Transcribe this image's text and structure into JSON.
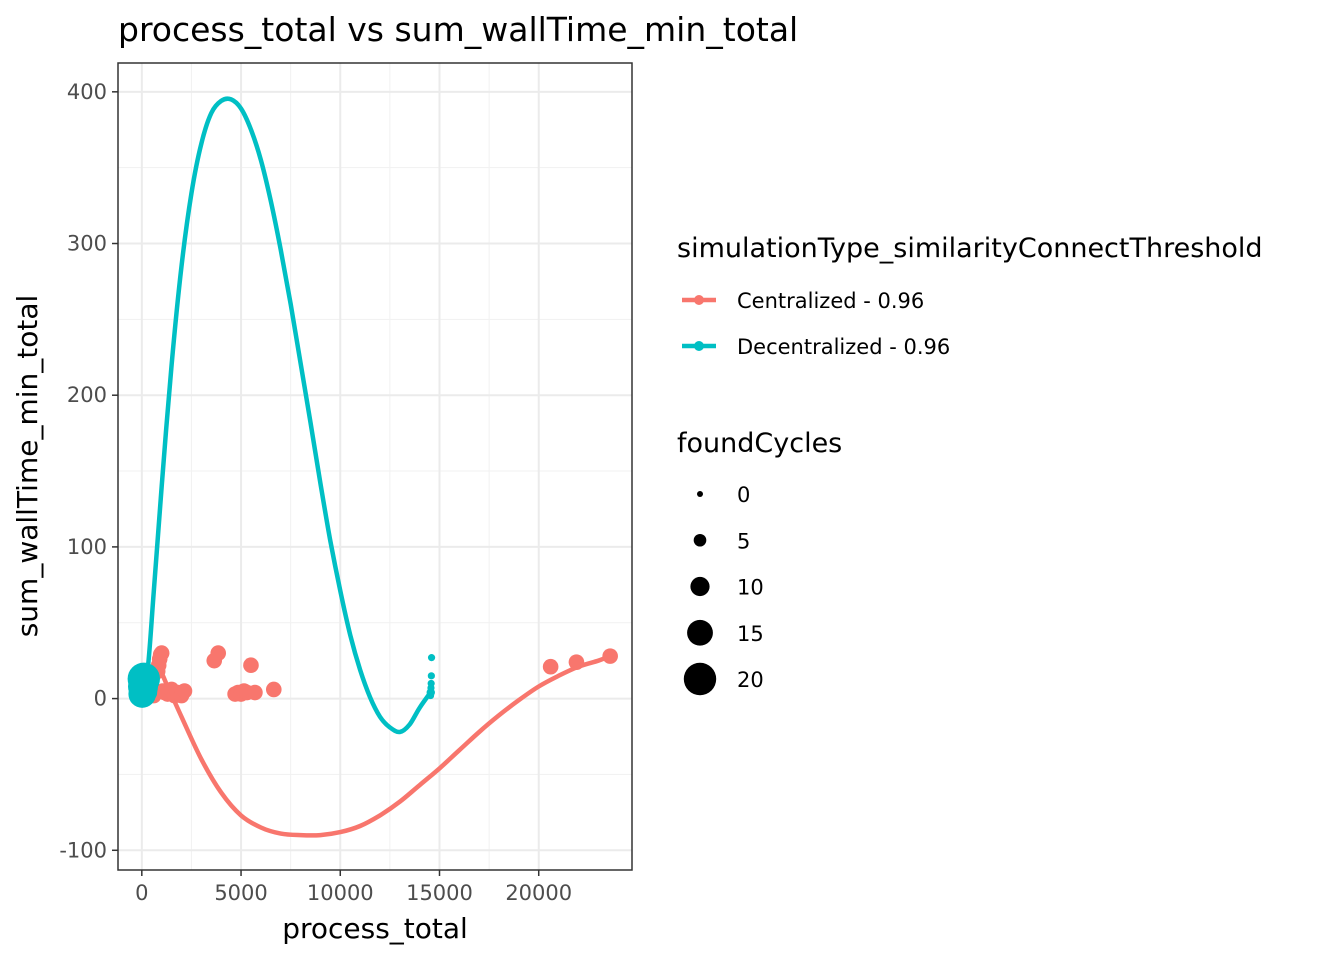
{
  "chart_data": {
    "type": "scatter",
    "title": "process_total  vs  sum_wallTime_min_total",
    "xlabel": "process_total",
    "ylabel": "sum_wallTime_min_total",
    "xlim": [
      -1200,
      24700
    ],
    "ylim": [
      -113,
      419
    ],
    "x_ticks": [
      0,
      5000,
      10000,
      15000,
      20000
    ],
    "x_tick_labels": [
      "0",
      "5000",
      "10000",
      "15000",
      "20000"
    ],
    "y_ticks": [
      -100,
      0,
      100,
      200,
      300,
      400
    ],
    "y_tick_labels": [
      "-100",
      "0",
      "100",
      "200",
      "300",
      "400"
    ],
    "grid": true,
    "legend_placement": "right",
    "color_legend": {
      "title": "simulationType_similarityConnectThreshold",
      "entries": [
        {
          "label": "Centralized - 0.96",
          "color": "#F8766D"
        },
        {
          "label": "Decentralized - 0.96",
          "color": "#00BFC4"
        }
      ]
    },
    "size_legend": {
      "title": "foundCycles",
      "entries": [
        {
          "label": "0",
          "value": 0
        },
        {
          "label": "5",
          "value": 5
        },
        {
          "label": "10",
          "value": 10
        },
        {
          "label": "15",
          "value": 15
        },
        {
          "label": "20",
          "value": 20
        }
      ]
    },
    "series": [
      {
        "name": "Centralized - 0.96",
        "color": "#F8766D",
        "points": [
          {
            "x": 50,
            "y": 2,
            "size": 8
          },
          {
            "x": 120,
            "y": 6,
            "size": 10
          },
          {
            "x": 200,
            "y": 3,
            "size": 8
          },
          {
            "x": 300,
            "y": 8,
            "size": 8
          },
          {
            "x": 400,
            "y": 4,
            "size": 8
          },
          {
            "x": 500,
            "y": 12,
            "size": 8
          },
          {
            "x": 600,
            "y": 2,
            "size": 8
          },
          {
            "x": 700,
            "y": 5,
            "size": 8
          },
          {
            "x": 800,
            "y": 18,
            "size": 8
          },
          {
            "x": 850,
            "y": 22,
            "size": 8
          },
          {
            "x": 900,
            "y": 26,
            "size": 8
          },
          {
            "x": 950,
            "y": 29,
            "size": 8
          },
          {
            "x": 1000,
            "y": 30,
            "size": 8
          },
          {
            "x": 1050,
            "y": 5,
            "size": 8
          },
          {
            "x": 1150,
            "y": 4,
            "size": 8
          },
          {
            "x": 1300,
            "y": 3,
            "size": 8
          },
          {
            "x": 1500,
            "y": 6,
            "size": 8
          },
          {
            "x": 1650,
            "y": 2,
            "size": 8
          },
          {
            "x": 1800,
            "y": 4,
            "size": 8
          },
          {
            "x": 2000,
            "y": 2,
            "size": 8
          },
          {
            "x": 2150,
            "y": 5,
            "size": 8
          },
          {
            "x": 3650,
            "y": 25,
            "size": 8
          },
          {
            "x": 3850,
            "y": 30,
            "size": 8
          },
          {
            "x": 4700,
            "y": 3,
            "size": 8
          },
          {
            "x": 4850,
            "y": 4,
            "size": 8
          },
          {
            "x": 5000,
            "y": 3,
            "size": 8
          },
          {
            "x": 5150,
            "y": 5,
            "size": 8
          },
          {
            "x": 5300,
            "y": 4,
            "size": 8
          },
          {
            "x": 5500,
            "y": 22,
            "size": 8
          },
          {
            "x": 5700,
            "y": 4,
            "size": 8
          },
          {
            "x": 6650,
            "y": 6,
            "size": 8
          },
          {
            "x": 20600,
            "y": 21,
            "size": 8
          },
          {
            "x": 21900,
            "y": 24,
            "size": 8
          },
          {
            "x": 23600,
            "y": 28,
            "size": 8
          }
        ],
        "smooth": [
          [
            0,
            0
          ],
          [
            500,
            12
          ],
          [
            900,
            18
          ],
          [
            1300,
            8
          ],
          [
            2000,
            -12
          ],
          [
            3000,
            -40
          ],
          [
            4000,
            -62
          ],
          [
            5000,
            -77
          ],
          [
            6000,
            -85
          ],
          [
            7000,
            -89
          ],
          [
            8000,
            -90
          ],
          [
            9000,
            -90
          ],
          [
            10000,
            -88
          ],
          [
            11000,
            -84
          ],
          [
            12000,
            -77
          ],
          [
            13000,
            -68
          ],
          [
            14000,
            -57
          ],
          [
            15000,
            -46
          ],
          [
            16000,
            -34
          ],
          [
            17000,
            -22
          ],
          [
            18000,
            -11
          ],
          [
            19000,
            -1
          ],
          [
            20000,
            8
          ],
          [
            21000,
            15
          ],
          [
            22000,
            21
          ],
          [
            23000,
            25
          ],
          [
            23600,
            28
          ]
        ]
      },
      {
        "name": "Decentralized - 0.96",
        "color": "#00BFC4",
        "points": [
          {
            "x": 20,
            "y": 3,
            "size": 18
          },
          {
            "x": 60,
            "y": 8,
            "size": 20
          },
          {
            "x": 100,
            "y": 13,
            "size": 22
          },
          {
            "x": 150,
            "y": 6,
            "size": 16
          },
          {
            "x": 200,
            "y": 11,
            "size": 14
          },
          {
            "x": 260,
            "y": 15,
            "size": 12
          },
          {
            "x": 320,
            "y": 4,
            "size": 10
          },
          {
            "x": 14550,
            "y": 2,
            "size": 1
          },
          {
            "x": 14560,
            "y": 4,
            "size": 2
          },
          {
            "x": 14570,
            "y": 7,
            "size": 1
          },
          {
            "x": 14580,
            "y": 10,
            "size": 1
          },
          {
            "x": 14590,
            "y": 15,
            "size": 1
          },
          {
            "x": 14600,
            "y": 27,
            "size": 1
          }
        ],
        "smooth": [
          [
            0,
            0
          ],
          [
            300,
            20
          ],
          [
            600,
            70
          ],
          [
            1000,
            140
          ],
          [
            1500,
            220
          ],
          [
            2000,
            285
          ],
          [
            2500,
            333
          ],
          [
            3000,
            366
          ],
          [
            3500,
            386
          ],
          [
            4000,
            394
          ],
          [
            4500,
            395
          ],
          [
            5000,
            389
          ],
          [
            5500,
            375
          ],
          [
            6000,
            355
          ],
          [
            6500,
            328
          ],
          [
            7000,
            296
          ],
          [
            7500,
            260
          ],
          [
            8000,
            221
          ],
          [
            8500,
            182
          ],
          [
            9000,
            142
          ],
          [
            9500,
            104
          ],
          [
            10000,
            71
          ],
          [
            10500,
            42
          ],
          [
            11000,
            19
          ],
          [
            11500,
            1
          ],
          [
            12000,
            -12
          ],
          [
            12500,
            -19
          ],
          [
            13000,
            -22
          ],
          [
            13500,
            -17
          ],
          [
            14000,
            -6
          ],
          [
            14600,
            5
          ]
        ]
      }
    ]
  }
}
